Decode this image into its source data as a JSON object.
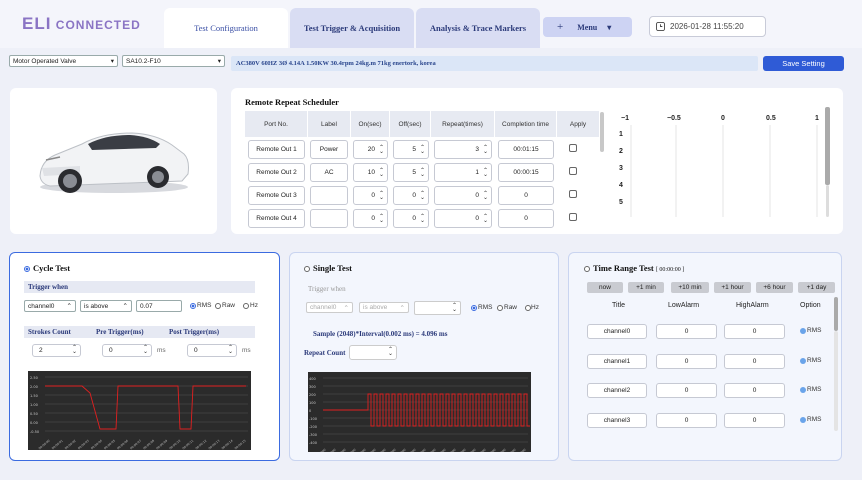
{
  "app": {
    "logo_main": "ELI",
    "logo_sub": " CONNECTED"
  },
  "tabs": [
    {
      "label": "Test Configuration"
    },
    {
      "label": "Test Trigger & Acquisition"
    },
    {
      "label": "Analysis & Trace Markers"
    }
  ],
  "menu": {
    "plus": "+",
    "label": "Menu",
    "caret": "▾"
  },
  "clock": {
    "value": "2026-01-28 11:55:20"
  },
  "device": {
    "type_select": "Motor Operated Valve",
    "model_select": "SA10.2-F10",
    "spec": "AC380V 60HZ 3Ø 4.14A 1.50KW 30.4rpm 24kg.m 71kg enertork, korea",
    "save_label": "Save Setting"
  },
  "scheduler": {
    "title": "Remote Repeat Scheduler",
    "columns": [
      "Port No.",
      "Label",
      "On(sec)",
      "Off(sec)",
      "Repeat(times)",
      "Completion time",
      "Apply"
    ],
    "rows": [
      {
        "port": "Remote Out 1",
        "label": "Power",
        "on": "20",
        "off": "5",
        "repeat": "3",
        "completion": "00:01:15"
      },
      {
        "port": "Remote Out 2",
        "label": "AC",
        "on": "10",
        "off": "5",
        "repeat": "1",
        "completion": "00:00:15"
      },
      {
        "port": "Remote Out 3",
        "label": "",
        "on": "0",
        "off": "0",
        "repeat": "0",
        "completion": "0"
      },
      {
        "port": "Remote Out 4",
        "label": "",
        "on": "0",
        "off": "0",
        "repeat": "0",
        "completion": "0"
      }
    ],
    "axis_ticks": [
      "−1",
      "−0.5",
      "0",
      "0.5",
      "1"
    ],
    "row_ticks": [
      "1",
      "2",
      "3",
      "4",
      "5"
    ]
  },
  "cycle": {
    "title": "Cycle Test",
    "trigger_header": "Trigger when",
    "channel": "channel0",
    "condition": "is above",
    "threshold": "0.07",
    "modes": [
      "RMS",
      "Raw",
      "Hz"
    ],
    "param_headers": [
      "Strokes Count",
      "Pre Trigger(ms)",
      "Post Trigger(ms)"
    ],
    "strokes": "2",
    "pre": "0",
    "post": "0",
    "unit": "ms",
    "y_ticks": [
      "2.50",
      "2.00",
      "1.50",
      "1.00",
      "0.50",
      "0.00",
      "-0.50"
    ],
    "x_ticks": [
      "00:00:00",
      "00:00:01",
      "00:00:02",
      "00:00:03",
      "00:00:04",
      "00:00:05",
      "00:00:06",
      "00:00:07",
      "00:00:08",
      "00:00:09",
      "00:00:10",
      "00:00:11",
      "00:00:12",
      "00:00:13",
      "00:00:14",
      "00:00:15"
    ]
  },
  "single": {
    "title": "Single Test",
    "trigger_header": "Trigger when",
    "channel": "channel0",
    "condition": "is above",
    "threshold": "",
    "modes": [
      "RMS",
      "Raw",
      "Hz"
    ],
    "sample_text": "Sample (2048)*Interval(0.002 ms) = 4.096 ms",
    "repeat_label": "Repeat Count",
    "repeat_value": "",
    "y_ticks": [
      "400",
      "300",
      "200",
      "100",
      "0",
      "-100",
      "-200",
      "-300",
      "-400"
    ],
    "x_ticks": [
      "0.0000",
      "0.2000",
      "0.4000",
      "0.6000",
      "0.8000",
      "1.0000",
      "1.2000",
      "1.4000",
      "1.6000",
      "1.8000",
      "2.0000",
      "2.2000",
      "2.4000",
      "2.6000",
      "2.8000",
      "3.0000",
      "3.2000",
      "3.4000",
      "3.6000",
      "3.8000",
      "4.0000"
    ]
  },
  "timerange": {
    "title": "Time Range Test",
    "elapsed": "[ 00:00:00 ]",
    "quick": [
      "now",
      "+1 min",
      "+10 min",
      "+1 hour",
      "+6 hour",
      "+1 day"
    ],
    "columns": [
      "Title",
      "LowAlarm",
      "HighAlarm",
      "Option"
    ],
    "rows": [
      {
        "title": "channel0",
        "low": "0",
        "high": "0",
        "opt": "RMS"
      },
      {
        "title": "channel1",
        "low": "0",
        "high": "0",
        "opt": "RMS"
      },
      {
        "title": "channel2",
        "low": "0",
        "high": "0",
        "opt": "RMS"
      },
      {
        "title": "channel3",
        "low": "0",
        "high": "0",
        "opt": "RMS"
      }
    ]
  },
  "colors": {
    "accent": "#2f5bd6",
    "logo": "#8a74c4",
    "trace": "#e02020"
  }
}
